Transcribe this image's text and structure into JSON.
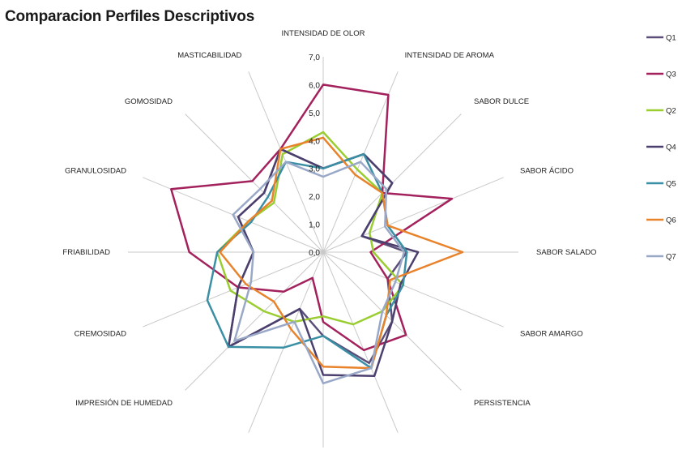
{
  "chart_data": {
    "type": "radar",
    "title": "Comparacion Perfiles Descriptivos",
    "categories": [
      "INTENSIDAD DE OLOR",
      "INTENSIDAD DE AROMA",
      "SABOR DULCE",
      "SABOR ÁCIDO",
      "SABOR SALADO",
      "SABOR AMARGO",
      "PERSISTENCIA",
      "",
      "",
      "",
      "IMPRESIÓN DE HUMEDAD",
      "CREMOSIDAD",
      "FRIABILIDAD",
      "GRANULOSIDAD",
      "GOMOSIDAD",
      "MASTICABILIDAD"
    ],
    "rlim": [
      0,
      7
    ],
    "ticks": [
      "0,0",
      "1,0",
      "2,0",
      "3,0",
      "4,0",
      "5,0",
      "6,0",
      "7,0"
    ],
    "grid": true,
    "legend_position": "right",
    "series": [
      {
        "name": "Q1",
        "color": "#5b4f7a",
        "values": [
          3.0,
          3.8,
          3.5,
          1.5,
          3.0,
          2.5,
          3.5,
          4.3,
          3.0,
          2.2,
          4.8,
          3.3,
          2.5,
          3.3,
          3.0,
          4.0
        ]
      },
      {
        "name": "Q3",
        "color": "#a3215c",
        "values": [
          6.0,
          6.1,
          3.0,
          5.0,
          1.7,
          2.5,
          4.2,
          3.8,
          2.5,
          1.0,
          2.0,
          3.3,
          4.8,
          5.9,
          3.6,
          4.0
        ]
      },
      {
        "name": "Q2",
        "color": "#9acd32",
        "values": [
          4.3,
          3.2,
          3.0,
          1.8,
          1.8,
          3.1,
          3.0,
          2.8,
          2.3,
          2.7,
          3.0,
          3.6,
          3.8,
          2.9,
          2.5,
          3.8
        ]
      },
      {
        "name": "Q4",
        "color": "#4b3f6e",
        "values": [
          3.0,
          3.8,
          3.5,
          1.5,
          3.4,
          3.0,
          3.5,
          4.8,
          4.4,
          2.2,
          4.8,
          3.3,
          2.5,
          3.3,
          3.0,
          4.0
        ]
      },
      {
        "name": "Q5",
        "color": "#3a8fa5",
        "values": [
          3.0,
          3.8,
          3.0,
          2.5,
          3.0,
          3.1,
          3.2,
          4.5,
          3.0,
          3.7,
          4.8,
          4.5,
          3.8,
          2.8,
          2.8,
          3.5
        ]
      },
      {
        "name": "Q6",
        "color": "#e8822b",
        "values": [
          4.1,
          3.0,
          3.0,
          2.5,
          5.0,
          2.6,
          3.2,
          4.5,
          4.1,
          3.0,
          2.5,
          3.0,
          3.7,
          2.9,
          2.6,
          4.0
        ]
      },
      {
        "name": "Q7",
        "color": "#9aa8c8",
        "values": [
          2.7,
          3.5,
          3.2,
          2.4,
          2.9,
          2.8,
          3.0,
          4.5,
          4.7,
          2.7,
          4.5,
          2.8,
          2.5,
          3.5,
          3.2,
          3.5
        ]
      }
    ]
  }
}
